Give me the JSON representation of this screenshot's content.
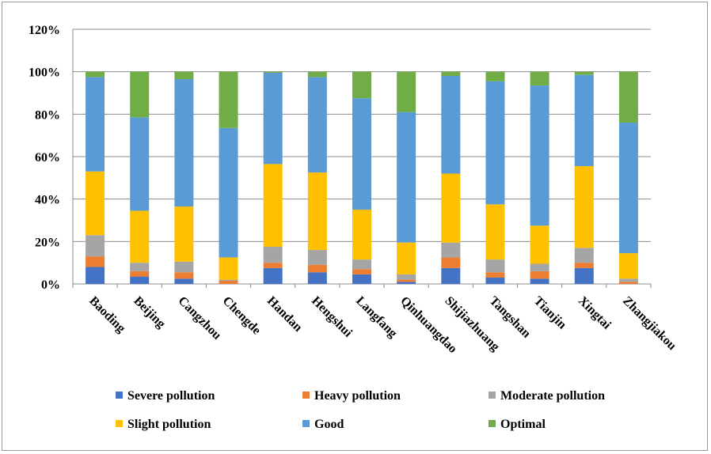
{
  "chart_data": {
    "type": "bar",
    "stacked": true,
    "categories": [
      "Baoding",
      "Beijing",
      "Cangzhou",
      "Chengde",
      "Handan",
      "Hengshui",
      "Langfang",
      "Qinhuangdao",
      "Shijiazhuang",
      "Tangshan",
      "Tianjin",
      "Xingtai",
      "Zhangjiakou"
    ],
    "ylim": [
      0,
      1.2
    ],
    "yticks": [
      0,
      0.2,
      0.4,
      0.6,
      0.8,
      1.0,
      1.2
    ],
    "ytick_labels": [
      "0%",
      "20%",
      "40%",
      "60%",
      "80%",
      "100%",
      "120%"
    ],
    "grid": true,
    "legend_position": "bottom",
    "series": [
      {
        "name": "Severe pollution",
        "color": "#4472C4",
        "values": [
          0.08,
          0.035,
          0.025,
          0.0,
          0.075,
          0.055,
          0.045,
          0.01,
          0.075,
          0.03,
          0.025,
          0.075,
          0.0
        ]
      },
      {
        "name": "Heavy pollution",
        "color": "#ED7D31",
        "values": [
          0.05,
          0.025,
          0.03,
          0.015,
          0.025,
          0.035,
          0.025,
          0.01,
          0.05,
          0.025,
          0.035,
          0.025,
          0.01
        ]
      },
      {
        "name": "Moderate pollution",
        "color": "#A5A5A5",
        "values": [
          0.1,
          0.04,
          0.05,
          0.005,
          0.075,
          0.07,
          0.045,
          0.025,
          0.07,
          0.06,
          0.035,
          0.07,
          0.015
        ]
      },
      {
        "name": "Slight pollution",
        "color": "#FFC000",
        "values": [
          0.3,
          0.245,
          0.26,
          0.105,
          0.39,
          0.365,
          0.235,
          0.15,
          0.325,
          0.26,
          0.18,
          0.385,
          0.12
        ]
      },
      {
        "name": "Good",
        "color": "#5B9BD5",
        "values": [
          0.445,
          0.44,
          0.6,
          0.61,
          0.43,
          0.45,
          0.525,
          0.615,
          0.46,
          0.58,
          0.66,
          0.43,
          0.615
        ]
      },
      {
        "name": "Optimal",
        "color": "#70AD47",
        "values": [
          0.025,
          0.215,
          0.035,
          0.265,
          0.005,
          0.025,
          0.125,
          0.19,
          0.02,
          0.045,
          0.065,
          0.015,
          0.24
        ]
      }
    ]
  }
}
